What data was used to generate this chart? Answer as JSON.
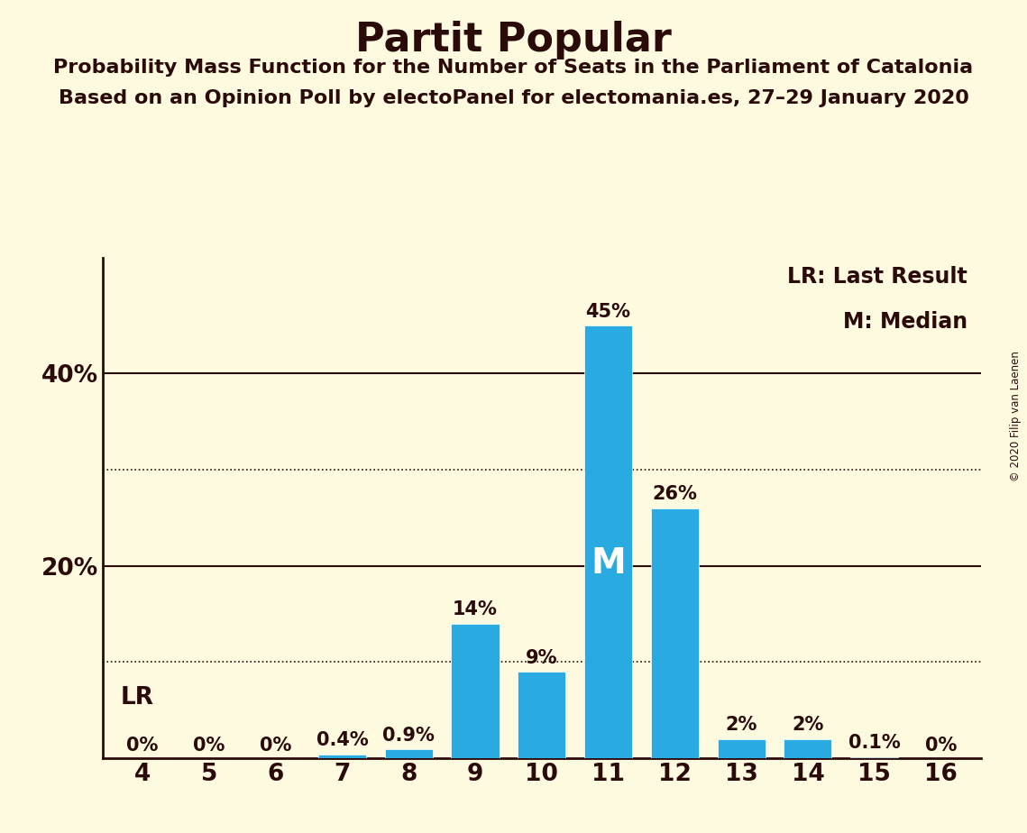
{
  "title": "Partit Popular",
  "subtitle1": "Probability Mass Function for the Number of Seats in the Parliament of Catalonia",
  "subtitle2": "Based on an Opinion Poll by electoPanel for electomania.es, 27–29 January 2020",
  "copyright": "© 2020 Filip van Laenen",
  "categories": [
    4,
    5,
    6,
    7,
    8,
    9,
    10,
    11,
    12,
    13,
    14,
    15,
    16
  ],
  "values": [
    0.0,
    0.0,
    0.0,
    0.4,
    0.9,
    14.0,
    9.0,
    45.0,
    26.0,
    2.0,
    2.0,
    0.1,
    0.0
  ],
  "bar_labels": [
    "0%",
    "0%",
    "0%",
    "0.4%",
    "0.9%",
    "14%",
    "9%",
    "45%",
    "26%",
    "2%",
    "2%",
    "0.1%",
    "0%"
  ],
  "bar_color": "#29ABE2",
  "median_seat": 11,
  "median_label": "M",
  "lr_seat": 4,
  "lr_label": "LR",
  "ytick_labels": [
    "",
    "20%",
    "40%"
  ],
  "background_color": "#FEFAE0",
  "text_color": "#2B0A0A",
  "ylim": [
    0,
    52
  ],
  "bar_width": 0.72,
  "legend_lr": "LR: Last Result",
  "legend_m": "M: Median",
  "solid_lines": [
    20,
    40
  ],
  "dotted_lines": [
    10,
    30
  ]
}
